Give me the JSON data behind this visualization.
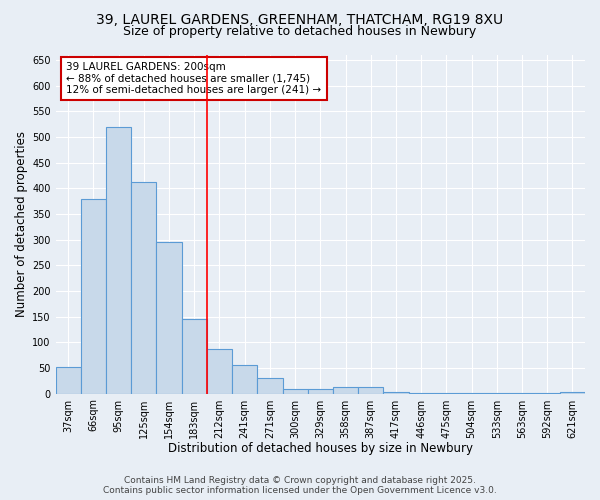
{
  "title_line1": "39, LAUREL GARDENS, GREENHAM, THATCHAM, RG19 8XU",
  "title_line2": "Size of property relative to detached houses in Newbury",
  "xlabel": "Distribution of detached houses by size in Newbury",
  "ylabel": "Number of detached properties",
  "categories": [
    "37sqm",
    "66sqm",
    "95sqm",
    "125sqm",
    "154sqm",
    "183sqm",
    "212sqm",
    "241sqm",
    "271sqm",
    "300sqm",
    "329sqm",
    "358sqm",
    "387sqm",
    "417sqm",
    "446sqm",
    "475sqm",
    "504sqm",
    "533sqm",
    "563sqm",
    "592sqm",
    "621sqm"
  ],
  "values": [
    51,
    380,
    520,
    413,
    295,
    145,
    87,
    55,
    30,
    8,
    8,
    12,
    12,
    3,
    2,
    2,
    2,
    1,
    2,
    1,
    3
  ],
  "bar_color": "#c8d9ea",
  "bar_edge_color": "#5b9bd5",
  "ylim": [
    0,
    660
  ],
  "yticks": [
    0,
    50,
    100,
    150,
    200,
    250,
    300,
    350,
    400,
    450,
    500,
    550,
    600,
    650
  ],
  "red_line_x": 5.5,
  "annotation_line1": "39 LAUREL GARDENS: 200sqm",
  "annotation_line2": "← 88% of detached houses are smaller (1,745)",
  "annotation_line3": "12% of semi-detached houses are larger (241) →",
  "annotation_box_color": "#ffffff",
  "annotation_box_edge": "#cc0000",
  "footer_line1": "Contains HM Land Registry data © Crown copyright and database right 2025.",
  "footer_line2": "Contains public sector information licensed under the Open Government Licence v3.0.",
  "bg_color": "#e8eef5",
  "plot_bg_color": "#e8eef5",
  "grid_color": "#ffffff",
  "title_fontsize": 10,
  "subtitle_fontsize": 9,
  "axis_label_fontsize": 8.5,
  "tick_fontsize": 7,
  "annotation_fontsize": 7.5,
  "footer_fontsize": 6.5
}
